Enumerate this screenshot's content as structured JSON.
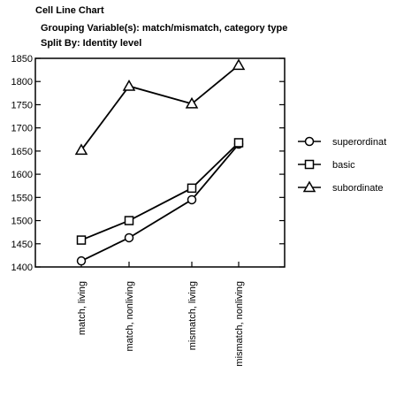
{
  "header": {
    "title": "Cell Line Chart",
    "grouping": "Grouping Variable(s): match/mismatch, category type",
    "split": "Split By: Identity level"
  },
  "chart_data": {
    "type": "line",
    "categories": [
      "match, living",
      "match, nonliving",
      "mismatch, living",
      "mismatch, nonliving"
    ],
    "ylim": [
      1400,
      1850
    ],
    "yticks": [
      1400,
      1450,
      1500,
      1550,
      1600,
      1650,
      1700,
      1750,
      1800,
      1850
    ],
    "series": [
      {
        "name": "superordinat",
        "marker": "circle",
        "values": [
          1413,
          1463,
          1545,
          1665
        ]
      },
      {
        "name": "basic",
        "marker": "square",
        "values": [
          1458,
          1500,
          1570,
          1668
        ]
      },
      {
        "name": "subordinate",
        "marker": "triangle",
        "values": [
          1652,
          1790,
          1752,
          1835
        ]
      }
    ],
    "legend_position": "right",
    "xlabel": "",
    "ylabel": ""
  }
}
